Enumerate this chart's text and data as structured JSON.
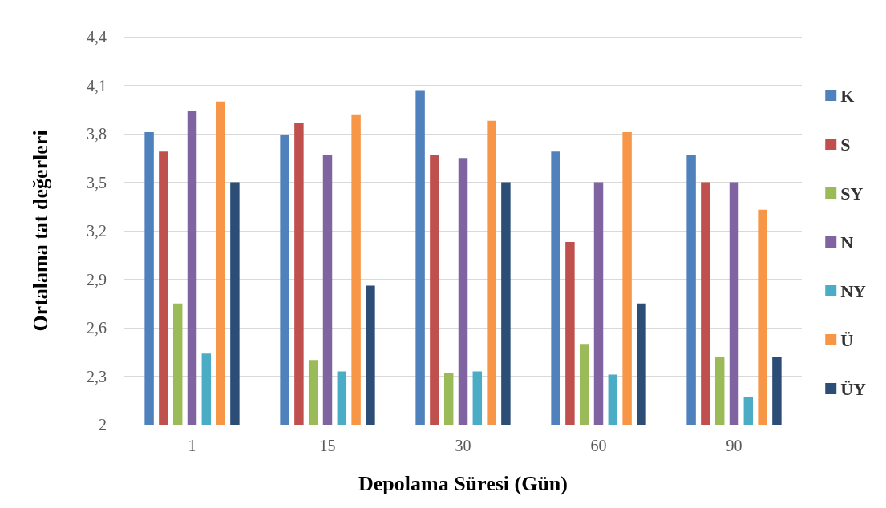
{
  "chart_data": {
    "type": "bar",
    "xlabel": "Depolama Süresi (Gün)",
    "ylabel": "Ortalama tat değerleri",
    "categories": [
      "1",
      "15",
      "30",
      "60",
      "90"
    ],
    "series": [
      {
        "name": "K",
        "color": "#4f81bd",
        "values": [
          3.81,
          3.79,
          4.07,
          3.69,
          3.67
        ]
      },
      {
        "name": "S",
        "color": "#c0504d",
        "values": [
          3.69,
          3.87,
          3.67,
          3.13,
          3.5
        ]
      },
      {
        "name": "SY",
        "color": "#9bbb59",
        "values": [
          2.75,
          2.4,
          2.32,
          2.5,
          2.42
        ]
      },
      {
        "name": "N",
        "color": "#8064a2",
        "values": [
          3.94,
          3.67,
          3.65,
          3.5,
          3.5
        ]
      },
      {
        "name": "NY",
        "color": "#4bacc6",
        "values": [
          2.44,
          2.33,
          2.33,
          2.31,
          2.17
        ]
      },
      {
        "name": "Ü",
        "color": "#f79646",
        "values": [
          4.0,
          3.92,
          3.88,
          3.81,
          3.33
        ]
      },
      {
        "name": "ÜY",
        "color": "#2c4d75",
        "values": [
          3.5,
          2.86,
          3.5,
          2.75,
          2.42
        ]
      }
    ],
    "ylim": [
      2,
      4.4
    ],
    "yticks": [
      2,
      {
        "value": 2.3,
        "label": "2,3"
      },
      {
        "value": 2.6,
        "label": "2,6"
      },
      {
        "value": 2.9,
        "label": "2,9"
      },
      {
        "value": 3.2,
        "label": "3,2"
      },
      {
        "value": 3.5,
        "label": "3,5"
      },
      {
        "value": 3.8,
        "label": "3,8"
      },
      {
        "value": 4.1,
        "label": "4,1"
      },
      {
        "value": 4.4,
        "label": "4,4"
      }
    ],
    "grid": "y",
    "legend": "right"
  }
}
